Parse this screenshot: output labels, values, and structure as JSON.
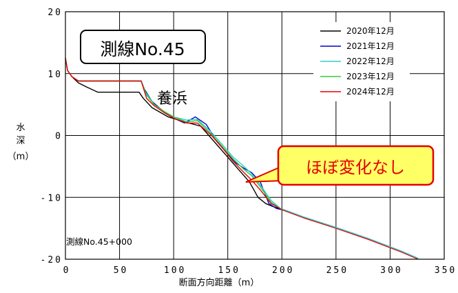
{
  "chart_data": {
    "type": "line",
    "xlabel": "断面方向距離（m）",
    "ylabel_lines": [
      "水",
      "深",
      "（m）"
    ],
    "xlim": [
      0,
      350
    ],
    "ylim": [
      -20,
      20
    ],
    "x_ticks": [
      "0",
      "50",
      "100",
      "150",
      "200",
      "250",
      "300",
      "350"
    ],
    "y_ticks": [
      "20",
      "10",
      "0",
      "-10",
      "-20"
    ],
    "grid": true,
    "legend_position": "top-right",
    "title_box": "測線No.45",
    "annotations": {
      "area_label": "養浜",
      "callout": "ほぼ変化なし",
      "profile_label": "測線No.45+000"
    },
    "series": [
      {
        "name": "2020年12月",
        "color": "#000000",
        "x": [
          0,
          2,
          6,
          12,
          20,
          30,
          50,
          68,
          72,
          80,
          95,
          110,
          125,
          140,
          150,
          160,
          170,
          178,
          185,
          192,
          200
        ],
        "y": [
          12.5,
          10.5,
          9.5,
          8.5,
          7.8,
          7.0,
          7.0,
          7.0,
          6.0,
          4.5,
          3.0,
          2.2,
          1.5,
          -1.5,
          -3.5,
          -5.5,
          -7.5,
          -10.0,
          -11.0,
          -11.5,
          -12.0
        ]
      },
      {
        "name": "2021年12月",
        "color": "#0000cc",
        "x": [
          0,
          2,
          6,
          12,
          20,
          50,
          70,
          73,
          80,
          90,
          100,
          110,
          120,
          130,
          140,
          150,
          158,
          165,
          172,
          180,
          188,
          195,
          200
        ],
        "y": [
          12.5,
          10.5,
          9.5,
          8.8,
          8.8,
          8.8,
          8.8,
          7.5,
          5.5,
          4.0,
          2.8,
          2.0,
          3.0,
          1.8,
          -1.0,
          -3.0,
          -4.5,
          -5.3,
          -6.0,
          -7.5,
          -11.0,
          -11.8,
          -12.0
        ]
      },
      {
        "name": "2022年12月",
        "color": "#33cccc",
        "x": [
          0,
          2,
          6,
          12,
          20,
          50,
          70,
          74,
          82,
          92,
          100,
          112,
          122,
          135,
          145,
          155,
          165,
          172,
          180,
          190,
          200
        ],
        "y": [
          12.5,
          10.5,
          9.5,
          8.8,
          8.8,
          8.8,
          8.8,
          7.0,
          5.0,
          3.8,
          3.0,
          2.5,
          2.6,
          0.5,
          -1.5,
          -3.5,
          -5.0,
          -6.2,
          -8.0,
          -10.5,
          -12.0
        ]
      },
      {
        "name": "2023年12月",
        "color": "#33cc33",
        "x": [
          0,
          2,
          6,
          12,
          20,
          50,
          70,
          75,
          82,
          92,
          100,
          112,
          122,
          135,
          145,
          155,
          165,
          172,
          180,
          190,
          200
        ],
        "y": [
          12.5,
          10.5,
          9.5,
          8.8,
          8.8,
          8.8,
          8.8,
          6.5,
          5.0,
          3.8,
          3.0,
          2.2,
          2.4,
          0.2,
          -1.8,
          -3.8,
          -5.5,
          -6.5,
          -8.3,
          -10.8,
          -12.0
        ]
      },
      {
        "name": "2024年12月",
        "color": "#e60000",
        "x": [
          0,
          2,
          6,
          12,
          20,
          50,
          70,
          75,
          82,
          92,
          100,
          112,
          122,
          135,
          145,
          155,
          165,
          172,
          180,
          190,
          200,
          220,
          250,
          280,
          310,
          326
        ],
        "y": [
          12.5,
          10.5,
          9.5,
          8.8,
          8.8,
          8.8,
          8.8,
          6.0,
          4.8,
          3.6,
          2.8,
          2.0,
          2.0,
          0.0,
          -2.0,
          -4.2,
          -6.0,
          -7.2,
          -8.8,
          -11.0,
          -12.0,
          -13.3,
          -15.0,
          -16.8,
          -18.8,
          -20.0
        ]
      }
    ],
    "offshore_tail": {
      "x": [
        200,
        220,
        250,
        280,
        310,
        326
      ],
      "y": [
        -12.0,
        -13.3,
        -15.0,
        -16.8,
        -18.8,
        -20.0
      ]
    }
  }
}
